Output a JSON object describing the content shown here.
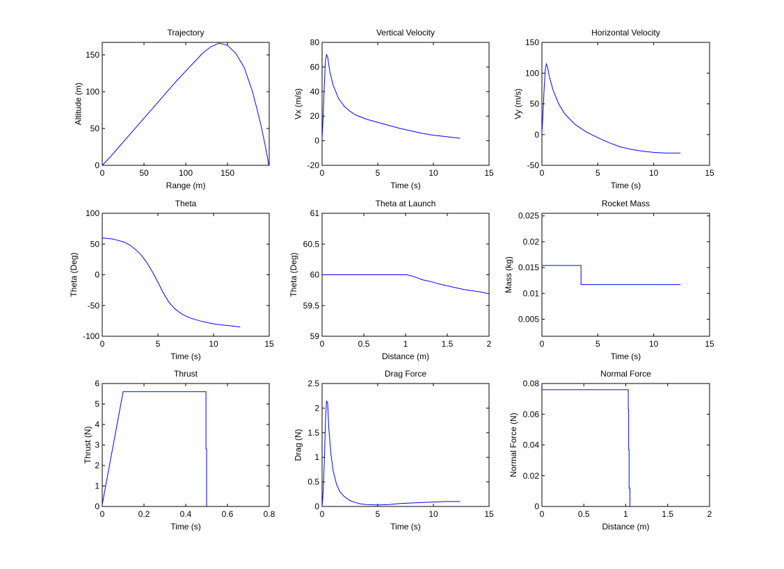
{
  "figure": {
    "background": "#ffffff",
    "line_color": "#0000ff"
  },
  "chart_data": [
    {
      "id": "trajectory",
      "type": "line",
      "title": "Trajectory",
      "xlabel": "Range (m)",
      "ylabel": "Altitude (m)",
      "xlim": [
        0,
        200
      ],
      "ylim": [
        0,
        167
      ],
      "xticks": [
        0,
        50,
        100,
        150
      ],
      "yticks": [
        0,
        50,
        100,
        150
      ],
      "grid": false,
      "series": [
        {
          "name": "trajectory",
          "x": [
            0,
            5,
            10,
            20,
            30,
            40,
            50,
            60,
            70,
            80,
            90,
            100,
            110,
            120,
            130,
            140,
            150,
            160,
            170,
            180,
            185,
            190,
            195,
            198,
            199.5
          ],
          "y": [
            0,
            6,
            12,
            25,
            38,
            51,
            64,
            77,
            90,
            103,
            116,
            128,
            140,
            152,
            161,
            166,
            163,
            152,
            133,
            100,
            78,
            55,
            28,
            10,
            0
          ]
        }
      ]
    },
    {
      "id": "vertical-velocity",
      "type": "line",
      "title": "Vertical Velocity",
      "xlabel": "Time (s)",
      "ylabel": "Vx (m/s)",
      "xlim": [
        0,
        15
      ],
      "ylim": [
        -20,
        80
      ],
      "xticks": [
        0,
        5,
        10,
        15
      ],
      "yticks": [
        -20,
        0,
        20,
        40,
        60,
        80
      ],
      "grid": false,
      "series": [
        {
          "name": "Vx",
          "x": [
            0,
            0.1,
            0.2,
            0.3,
            0.4,
            0.5,
            0.7,
            1.0,
            1.5,
            2.0,
            2.5,
            3.0,
            4.0,
            5.0,
            6.0,
            7.0,
            8.0,
            9.0,
            10.0,
            11.0,
            12.0,
            12.4
          ],
          "y": [
            2,
            20,
            45,
            65,
            70,
            68,
            56,
            45,
            34,
            28,
            24,
            21,
            17.5,
            15,
            12.5,
            10,
            8,
            6,
            4.5,
            3.5,
            2.5,
            2
          ]
        }
      ]
    },
    {
      "id": "horizontal-velocity",
      "type": "line",
      "title": "Horizontal Velocity",
      "xlabel": "Time (s)",
      "ylabel": "Vy (m/s)",
      "xlim": [
        0,
        15
      ],
      "ylim": [
        -50,
        150
      ],
      "xticks": [
        0,
        5,
        10,
        15
      ],
      "yticks": [
        -50,
        0,
        50,
        100,
        150
      ],
      "grid": false,
      "series": [
        {
          "name": "Vy",
          "x": [
            0,
            0.1,
            0.2,
            0.3,
            0.4,
            0.5,
            0.7,
            1.0,
            1.5,
            2.0,
            2.5,
            3.0,
            4.0,
            5.0,
            6.0,
            7.0,
            8.0,
            9.0,
            10.0,
            11.0,
            12.0,
            12.4
          ],
          "y": [
            3,
            35,
            75,
            105,
            115,
            110,
            92,
            72,
            50,
            35,
            25,
            16,
            4,
            -5,
            -13,
            -20,
            -24,
            -27,
            -29,
            -30,
            -30,
            -30
          ]
        }
      ]
    },
    {
      "id": "theta",
      "type": "line",
      "title": "Theta",
      "xlabel": "Time (s)",
      "ylabel": "Theta (Deg)",
      "xlim": [
        0,
        15
      ],
      "ylim": [
        -100,
        100
      ],
      "xticks": [
        0,
        5,
        10,
        15
      ],
      "yticks": [
        -100,
        -50,
        0,
        50,
        100
      ],
      "grid": false,
      "series": [
        {
          "name": "theta",
          "x": [
            0,
            1,
            2,
            2.5,
            3,
            3.5,
            4,
            4.5,
            5,
            5.5,
            6,
            6.5,
            7,
            7.5,
            8,
            9,
            10,
            11,
            12,
            12.4
          ],
          "y": [
            60,
            58,
            53,
            48,
            41,
            32,
            20,
            5,
            -12,
            -30,
            -45,
            -55,
            -62,
            -67,
            -71,
            -76,
            -80,
            -82,
            -84,
            -85
          ]
        }
      ]
    },
    {
      "id": "theta-at-launch",
      "type": "line",
      "title": "Theta at Launch",
      "xlabel": "Distance (m)",
      "ylabel": "Theta (Deg)",
      "xlim": [
        0,
        2
      ],
      "ylim": [
        59,
        61
      ],
      "xticks": [
        0,
        0.5,
        1,
        1.5,
        2
      ],
      "yticks": [
        59,
        59.5,
        60,
        60.5,
        61
      ],
      "grid": false,
      "series": [
        {
          "name": "theta-launch",
          "x": [
            0,
            1.02,
            1.1,
            1.2,
            1.3,
            1.4,
            1.5,
            1.6,
            1.7,
            1.8,
            1.9,
            2.0
          ],
          "y": [
            60,
            60,
            59.97,
            59.92,
            59.89,
            59.85,
            59.82,
            59.79,
            59.76,
            59.74,
            59.72,
            59.69
          ]
        }
      ]
    },
    {
      "id": "rocket-mass",
      "type": "line",
      "title": "Rocket Mass",
      "xlabel": "Time (s)",
      "ylabel": "Mass (kg)",
      "xlim": [
        0,
        15
      ],
      "ylim": [
        0.0017,
        0.0255
      ],
      "xticks": [
        0,
        5,
        10,
        15
      ],
      "yticks": [
        0.005,
        0.01,
        0.015,
        0.02,
        0.025
      ],
      "ytick_labels": [
        "0.005",
        "0.01",
        "0.015",
        "0.02",
        "0.025"
      ],
      "grid": false,
      "series": [
        {
          "name": "mass",
          "x": [
            0,
            3.5,
            3.5,
            12.4
          ],
          "y": [
            0.0154,
            0.0154,
            0.0117,
            0.0117
          ]
        }
      ]
    },
    {
      "id": "thrust",
      "type": "line",
      "title": "Thrust",
      "xlabel": "Time (s)",
      "ylabel": "Thrust (N)",
      "xlim": [
        0,
        0.8
      ],
      "ylim": [
        0,
        6
      ],
      "xticks": [
        0,
        0.2,
        0.4,
        0.6,
        0.8
      ],
      "yticks": [
        0,
        1,
        2,
        3,
        4,
        5,
        6
      ],
      "grid": false,
      "series": [
        {
          "name": "thrust",
          "x": [
            0,
            0.1,
            0.497,
            0.497,
            0.5,
            0.5
          ],
          "y": [
            0.1,
            5.6,
            5.6,
            2.8,
            2.8,
            0
          ]
        }
      ]
    },
    {
      "id": "drag-force",
      "type": "line",
      "title": "Drag Force",
      "xlabel": "Time (s)",
      "ylabel": "Drag (N)",
      "xlim": [
        0,
        15
      ],
      "ylim": [
        0,
        2.5
      ],
      "xticks": [
        0,
        5,
        10,
        15
      ],
      "yticks": [
        0,
        0.5,
        1,
        1.5,
        2,
        2.5
      ],
      "grid": false,
      "series": [
        {
          "name": "drag",
          "x": [
            0,
            0.1,
            0.2,
            0.3,
            0.4,
            0.5,
            0.6,
            0.8,
            1.0,
            1.3,
            1.6,
            2.0,
            2.5,
            3.0,
            3.5,
            4.0,
            5.0,
            6.0,
            7.0,
            8.0,
            9.0,
            10.0,
            11.0,
            12.4
          ],
          "y": [
            0,
            0.3,
            0.9,
            1.7,
            2.15,
            2.1,
            1.6,
            1.05,
            0.72,
            0.45,
            0.3,
            0.2,
            0.12,
            0.08,
            0.05,
            0.04,
            0.03,
            0.04,
            0.06,
            0.07,
            0.08,
            0.09,
            0.1,
            0.1
          ]
        }
      ]
    },
    {
      "id": "normal-force",
      "type": "line",
      "title": "Normal Force",
      "xlabel": "Distance (m)",
      "ylabel": "Normal Force (N)",
      "xlim": [
        0,
        2
      ],
      "ylim": [
        0,
        0.08
      ],
      "xticks": [
        0,
        0.5,
        1,
        1.5,
        2
      ],
      "yticks": [
        0,
        0.02,
        0.04,
        0.06,
        0.08
      ],
      "ytick_labels": [
        "0",
        "0.02",
        "0.04",
        "0.06",
        "0.08"
      ],
      "grid": false,
      "series": [
        {
          "name": "normal",
          "x": [
            0,
            1.03,
            1.03,
            1.035,
            1.035,
            1.04,
            1.04,
            1.045,
            1.045,
            1.05,
            1.05
          ],
          "y": [
            0.076,
            0.076,
            0.063,
            0.063,
            0.037,
            0.037,
            0.012,
            0.012,
            0.012,
            0.012,
            0
          ]
        }
      ]
    }
  ]
}
